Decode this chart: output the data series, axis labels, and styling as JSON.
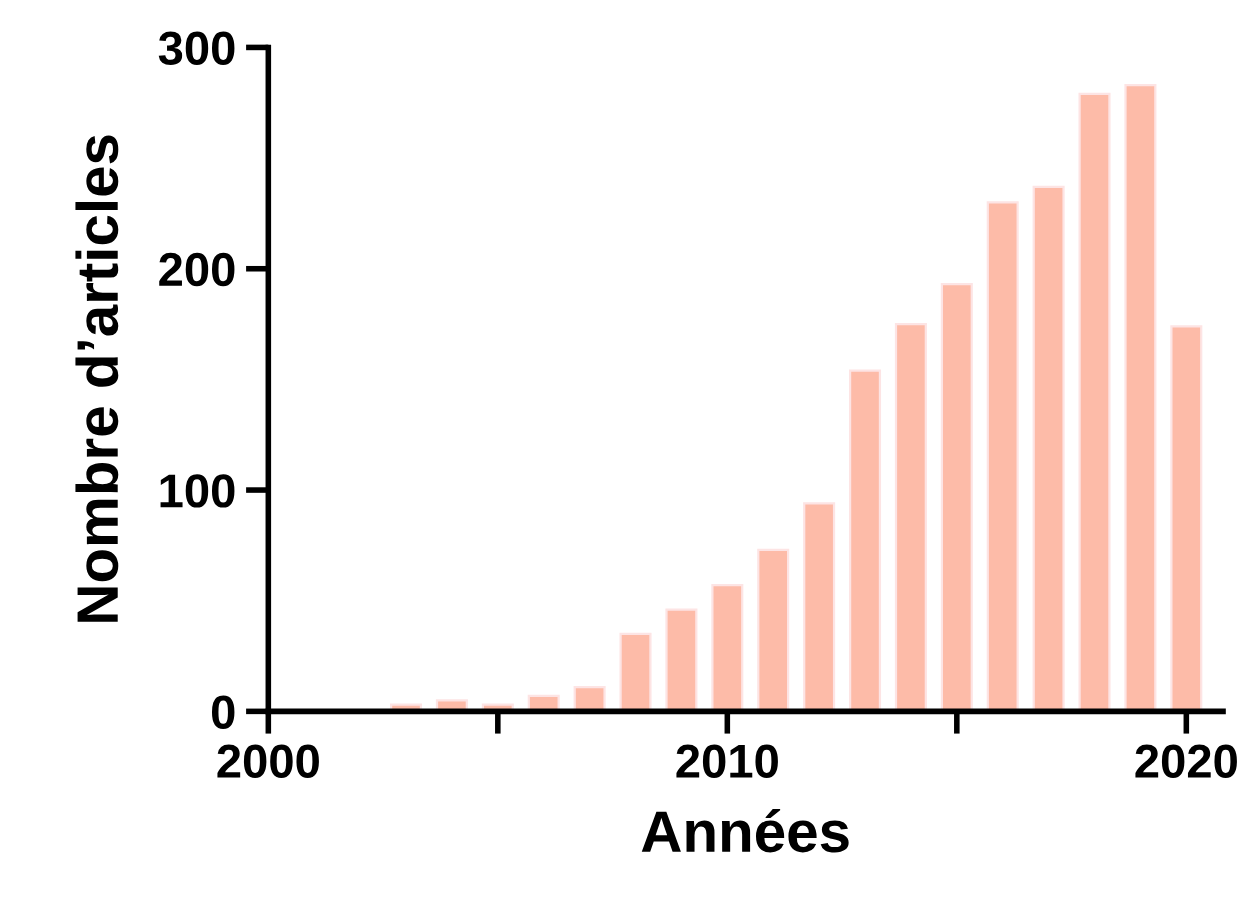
{
  "chart_data": {
    "type": "bar",
    "xlabel": "Années",
    "ylabel": "Nombre d’articles",
    "x": [
      2003,
      2004,
      2005,
      2006,
      2007,
      2008,
      2009,
      2010,
      2011,
      2012,
      2013,
      2014,
      2015,
      2016,
      2017,
      2018,
      2019,
      2020
    ],
    "values": [
      3,
      5,
      3,
      7,
      11,
      35,
      46,
      57,
      73,
      94,
      154,
      175,
      193,
      230,
      237,
      279,
      283,
      174
    ],
    "color": "#fdbba8",
    "xlim": [
      2000,
      2020.8
    ],
    "xticks": [
      2000,
      {
        "value": 2005,
        "label": null
      },
      2010,
      {
        "value": 2015,
        "label": null
      },
      2020
    ],
    "ylim": [
      0,
      300
    ],
    "yticks": [
      0,
      100,
      200,
      300
    ],
    "grid": false,
    "legend": false
  }
}
